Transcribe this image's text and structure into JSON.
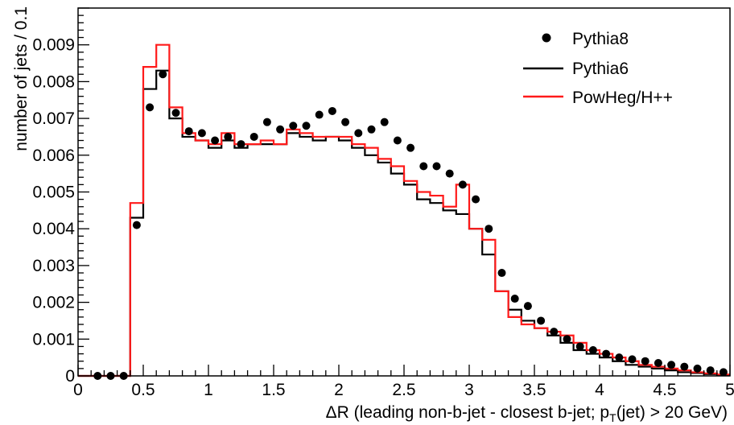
{
  "chart_data": {
    "type": "line",
    "title": "",
    "xlabel": "ΔR (leading non-b-jet - closest b-jet; p",
    "xlabel_subscript": "T",
    "xlabel_suffix": "(jet) > 20 GeV)",
    "ylabel": "number of jets / 0.1",
    "xlim": [
      0,
      5
    ],
    "ylim": [
      0,
      0.01
    ],
    "xticks": [
      "0",
      "0.5",
      "1",
      "1.5",
      "2",
      "2.5",
      "3",
      "3.5",
      "4",
      "4.5",
      "5"
    ],
    "xtick_values": [
      0,
      0.5,
      1,
      1.5,
      2,
      2.5,
      3,
      3.5,
      4,
      4.5,
      5
    ],
    "yticks": [
      "0",
      "0.001",
      "0.002",
      "0.003",
      "0.004",
      "0.005",
      "0.006",
      "0.007",
      "0.008",
      "0.009"
    ],
    "ytick_values": [
      0,
      0.001,
      0.002,
      0.003,
      0.004,
      0.005,
      0.006,
      0.007,
      0.008,
      0.009
    ],
    "grid": false,
    "legend_position": "top-right",
    "bin_edges": [
      0,
      0.1,
      0.2,
      0.3,
      0.4,
      0.5,
      0.6,
      0.7,
      0.8,
      0.9,
      1.0,
      1.1,
      1.2,
      1.3,
      1.4,
      1.5,
      1.6,
      1.7,
      1.8,
      1.9,
      2.0,
      2.1,
      2.2,
      2.3,
      2.4,
      2.5,
      2.6,
      2.7,
      2.8,
      2.9,
      3.0,
      3.1,
      3.2,
      3.3,
      3.4,
      3.5,
      3.6,
      3.7,
      3.8,
      3.9,
      4.0,
      4.1,
      4.2,
      4.3,
      4.4,
      4.5,
      4.6,
      4.7,
      4.8,
      4.9,
      5.0
    ],
    "series": [
      {
        "name": "Pythia8",
        "style": "markers",
        "color": "#000000",
        "x": [
          0.15,
          0.25,
          0.35,
          0.45,
          0.55,
          0.65,
          0.75,
          0.85,
          0.95,
          1.05,
          1.15,
          1.25,
          1.35,
          1.45,
          1.55,
          1.65,
          1.75,
          1.85,
          1.95,
          2.05,
          2.15,
          2.25,
          2.35,
          2.45,
          2.55,
          2.65,
          2.75,
          2.85,
          2.95,
          3.05,
          3.15,
          3.25,
          3.35,
          3.45,
          3.55,
          3.65,
          3.75,
          3.85,
          3.95,
          4.05,
          4.15,
          4.25,
          4.35,
          4.45,
          4.55,
          4.65,
          4.75,
          4.85,
          4.95
        ],
        "values": [
          0.0,
          0.0,
          0.0,
          0.0041,
          0.0073,
          0.0082,
          0.00715,
          0.00665,
          0.0066,
          0.0064,
          0.0065,
          0.0063,
          0.0065,
          0.0069,
          0.0067,
          0.0068,
          0.0068,
          0.0071,
          0.0072,
          0.0069,
          0.0066,
          0.0067,
          0.0069,
          0.0064,
          0.0062,
          0.0057,
          0.0057,
          0.0055,
          0.0052,
          0.0048,
          0.004,
          0.0028,
          0.0021,
          0.0019,
          0.0015,
          0.0012,
          0.001,
          0.0008,
          0.0007,
          0.0006,
          0.0005,
          0.00045,
          0.0004,
          0.00035,
          0.0003,
          0.00025,
          0.0002,
          0.00015,
          0.0001
        ]
      },
      {
        "name": "Pythia6",
        "style": "step",
        "color": "#000000",
        "values": [
          0.0,
          0.0,
          0.0,
          0.0,
          0.0043,
          0.0078,
          0.0083,
          0.007,
          0.0065,
          0.0064,
          0.0062,
          0.0064,
          0.0062,
          0.0063,
          0.0063,
          0.0063,
          0.0066,
          0.0065,
          0.0064,
          0.0065,
          0.0064,
          0.0062,
          0.006,
          0.0058,
          0.0055,
          0.0052,
          0.0048,
          0.0047,
          0.0045,
          0.0044,
          0.004,
          0.0033,
          0.0023,
          0.0018,
          0.0015,
          0.0013,
          0.0011,
          0.0009,
          0.0007,
          0.0006,
          0.0005,
          0.0004,
          0.0003,
          0.00025,
          0.0002,
          0.00015,
          0.0001,
          8e-05,
          5e-05,
          3e-05
        ]
      },
      {
        "name": "PowHeg/H++",
        "style": "step",
        "color": "#ff1a1a",
        "values": [
          0.0,
          0.0,
          0.0,
          0.0,
          0.0047,
          0.0084,
          0.009,
          0.0073,
          0.0066,
          0.0064,
          0.0063,
          0.0066,
          0.0063,
          0.0063,
          0.0064,
          0.0063,
          0.0067,
          0.0066,
          0.0065,
          0.0065,
          0.0065,
          0.0063,
          0.0062,
          0.0059,
          0.0057,
          0.0053,
          0.005,
          0.0049,
          0.0046,
          0.0052,
          0.004,
          0.0037,
          0.0023,
          0.0016,
          0.0014,
          0.0013,
          0.0012,
          0.0011,
          0.0009,
          0.0007,
          0.0006,
          0.0005,
          0.0004,
          0.0003,
          0.00025,
          0.0002,
          0.00015,
          0.0001,
          7e-05,
          4e-05
        ]
      }
    ]
  }
}
